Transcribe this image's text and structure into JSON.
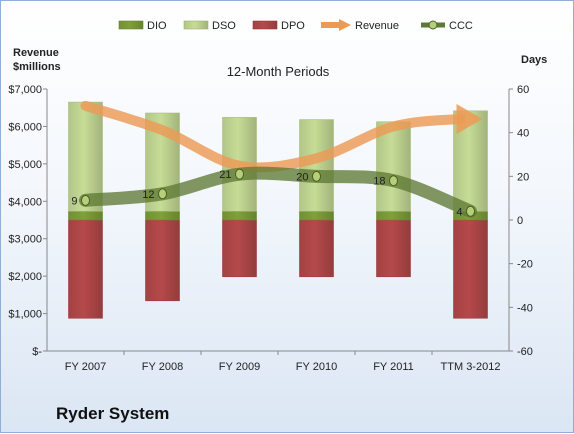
{
  "company": "Ryder System",
  "chart_data": {
    "type": "bar",
    "title": "12-Month Periods",
    "left_axis_label": [
      "Revenue",
      "$millions"
    ],
    "right_axis_label": "Days",
    "categories": [
      "FY 2007",
      "FY 2008",
      "FY 2009",
      "FY 2010",
      "FY 2011",
      "TTM 3-2012"
    ],
    "left_ylim": [
      0,
      7000
    ],
    "left_ticks": [
      "$-",
      "$1,000",
      "$2,000",
      "$3,000",
      "$4,000",
      "$5,000",
      "$6,000",
      "$7,000"
    ],
    "right_ylim": [
      -60,
      60
    ],
    "right_ticks": [
      "-60",
      "-40",
      "-20",
      "0",
      "20",
      "40",
      "60"
    ],
    "legend": [
      "DIO",
      "DSO",
      "DPO",
      "Revenue",
      "CCC"
    ],
    "legend_position": "top",
    "colors": {
      "DIO": "#7fa03a",
      "DSO": "#c6dc96",
      "DPO": "#b5494a",
      "Revenue": "#ed9a55",
      "CCC": "#5f7a34"
    },
    "series": [
      {
        "name": "DIO",
        "axis": "right",
        "values": [
          4,
          4,
          4,
          4,
          4,
          4
        ]
      },
      {
        "name": "DSO",
        "axis": "right",
        "values": [
          50,
          45,
          43,
          42,
          41,
          46
        ]
      },
      {
        "name": "DPO",
        "axis": "right",
        "values": [
          -45,
          -37,
          -26,
          -26,
          -26,
          -45
        ]
      },
      {
        "name": "Revenue",
        "axis": "left",
        "values": [
          6550,
          5900,
          4950,
          5150,
          6000,
          6200
        ]
      },
      {
        "name": "CCC",
        "axis": "right",
        "values": [
          9,
          12,
          21,
          20,
          18,
          4
        ]
      }
    ],
    "ccc_labels": [
      "9",
      "12",
      "21",
      "20",
      "18",
      "4"
    ],
    "grid": false
  }
}
